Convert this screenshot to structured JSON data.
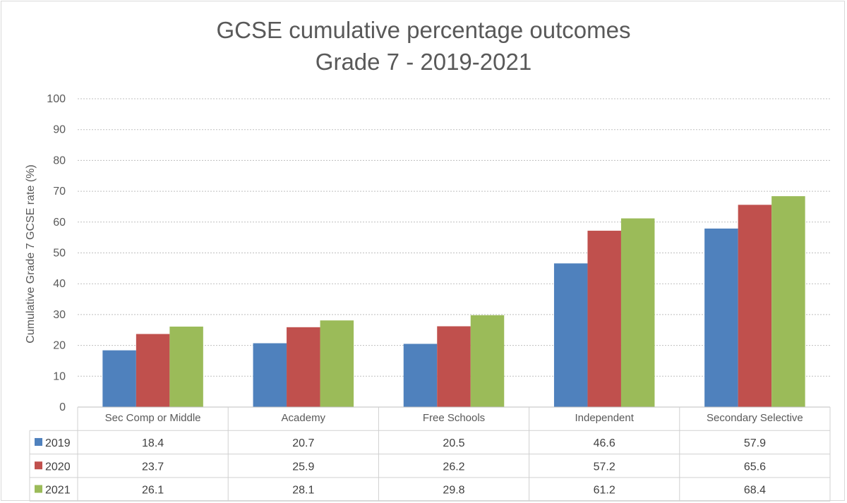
{
  "chart_data": {
    "type": "bar",
    "title_lines": [
      "GCSE cumulative percentage outcomes",
      "Grade 7 - 2019-2021"
    ],
    "xlabel": "",
    "ylabel": "Cumulative Grade  7 GCSE rate (%)",
    "ylim": [
      0,
      100
    ],
    "yticks": [
      0,
      10,
      20,
      30,
      40,
      50,
      60,
      70,
      80,
      90,
      100
    ],
    "grid": true,
    "legend_placement": "data-table",
    "categories": [
      "Sec Comp or Middle",
      "Academy",
      "Free Schools",
      "Independent",
      "Secondary Selective"
    ],
    "series": [
      {
        "name": "2019",
        "color": "#4f81bd",
        "values": [
          18.4,
          20.7,
          20.5,
          46.6,
          57.9
        ]
      },
      {
        "name": "2020",
        "color": "#c0504d",
        "values": [
          23.7,
          25.9,
          26.2,
          57.2,
          65.6
        ]
      },
      {
        "name": "2021",
        "color": "#9bbb59",
        "values": [
          26.1,
          28.1,
          29.8,
          61.2,
          68.4
        ]
      }
    ]
  }
}
